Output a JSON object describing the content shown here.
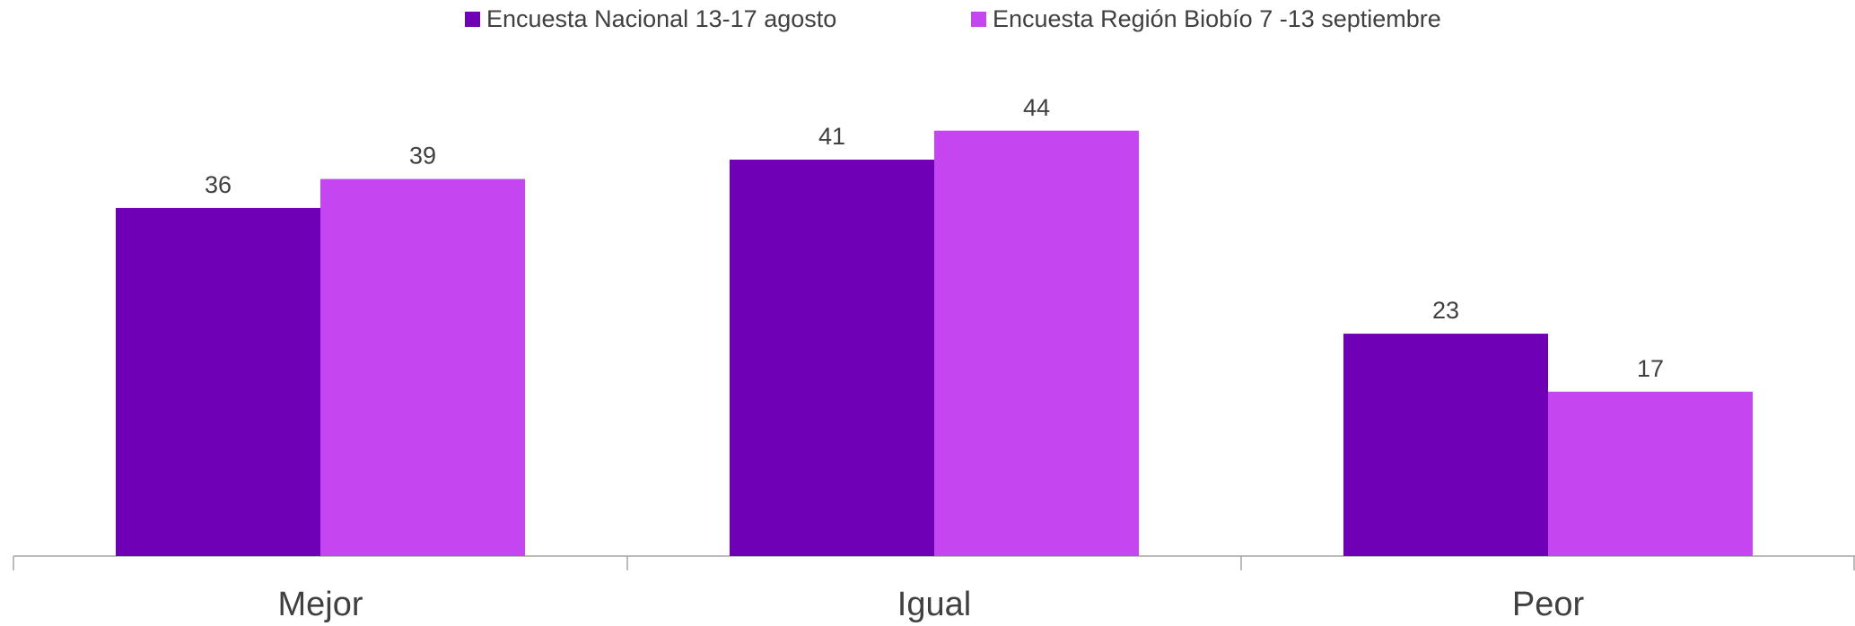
{
  "chart_data": {
    "type": "bar",
    "categories": [
      "Mejor",
      "Igual",
      "Peor"
    ],
    "series": [
      {
        "name": "Encuesta Nacional 13-17 agosto",
        "color": "#6f00b5",
        "values": [
          36,
          41,
          23
        ]
      },
      {
        "name": "Encuesta Región Biobío 7 -13 septiembre",
        "color": "#c545f1",
        "values": [
          39,
          44,
          17
        ]
      }
    ],
    "legend": "top"
  }
}
